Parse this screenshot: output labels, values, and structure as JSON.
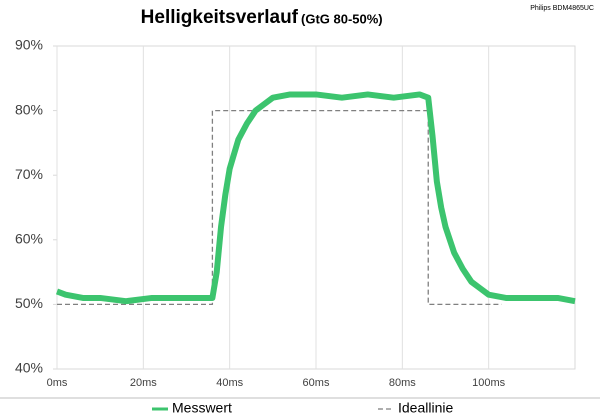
{
  "chart_data": {
    "type": "line",
    "title": "Helligkeitsverlauf",
    "subtitle": "(GtG 80-50%)",
    "note": "Philips BDM4865UC",
    "xlim": [
      0,
      120
    ],
    "xticks": [
      {
        "value": 0,
        "label": "0ms"
      },
      {
        "value": 20,
        "label": "20ms"
      },
      {
        "value": 40,
        "label": "40ms"
      },
      {
        "value": 60,
        "label": "60ms"
      },
      {
        "value": 80,
        "label": "80ms"
      },
      {
        "value": 100,
        "label": "100ms"
      }
    ],
    "ylim": [
      40,
      90
    ],
    "yticks": [
      {
        "value": 40,
        "label": "40%"
      },
      {
        "value": 50,
        "label": "50%"
      },
      {
        "value": 60,
        "label": "60%"
      },
      {
        "value": 70,
        "label": "70%"
      },
      {
        "value": 80,
        "label": "80%"
      },
      {
        "value": 90,
        "label": "90%"
      }
    ],
    "grid": "x",
    "series": [
      {
        "name": "Messwert",
        "color": "#3cc46e",
        "dashed": false,
        "x": [
          0,
          2,
          6,
          10,
          16,
          22,
          28,
          34,
          36,
          37,
          38,
          39,
          40,
          42,
          44,
          46,
          48,
          50,
          54,
          60,
          66,
          72,
          78,
          84,
          86,
          87,
          88,
          89,
          90,
          92,
          94,
          96,
          98,
          100,
          104,
          110,
          116,
          120
        ],
        "values": [
          52,
          51.5,
          51,
          51,
          50.5,
          51,
          51,
          51,
          51,
          55,
          62,
          67,
          71,
          75.5,
          78,
          80,
          81,
          82,
          82.5,
          82.5,
          82,
          82.5,
          82,
          82.5,
          82,
          76,
          69,
          65,
          62,
          58,
          55.5,
          53.5,
          52.5,
          51.5,
          51,
          51,
          51,
          50.5
        ]
      },
      {
        "name": "Ideallinie",
        "color": "#808080",
        "dashed": true,
        "x": [
          0,
          36,
          36,
          86,
          86,
          103
        ],
        "values": [
          50,
          50,
          80,
          80,
          50,
          50
        ]
      }
    ]
  }
}
